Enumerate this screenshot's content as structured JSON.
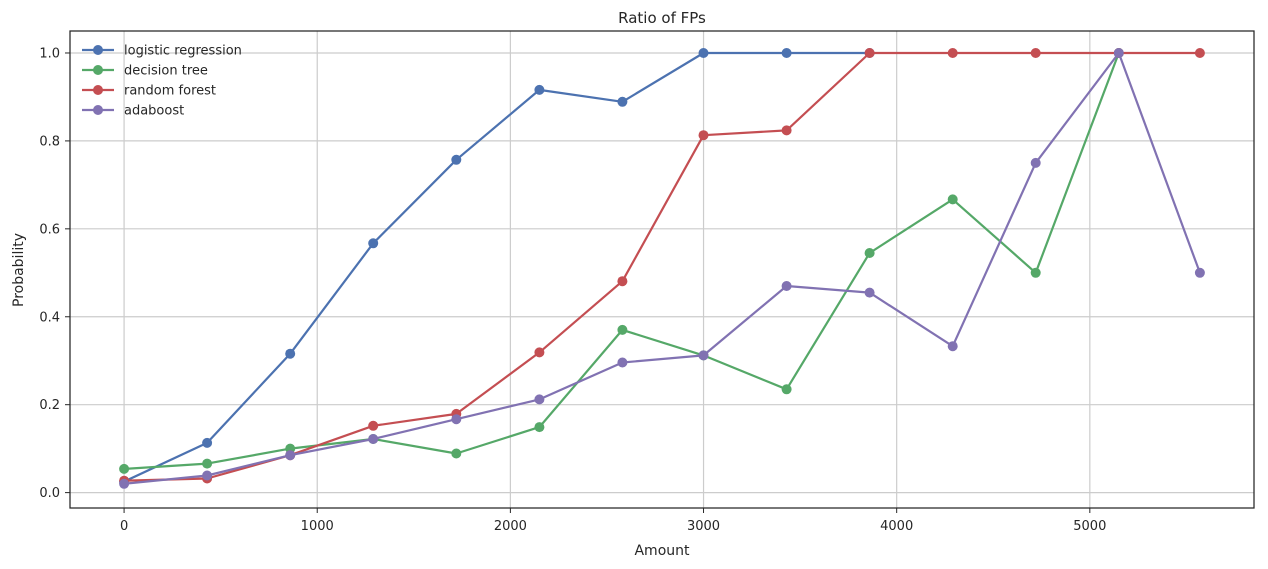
{
  "chart_data": {
    "type": "line",
    "title": "Ratio of FPs",
    "xlabel": "Amount",
    "ylabel": "Probability",
    "xlim": [
      -280,
      5850
    ],
    "ylim": [
      -0.035,
      1.05
    ],
    "xticks": [
      0,
      1000,
      2000,
      3000,
      4000,
      5000
    ],
    "yticks": [
      0.0,
      0.2,
      0.4,
      0.6,
      0.8,
      1.0
    ],
    "xtick_labels": [
      "0",
      "1000",
      "2000",
      "3000",
      "4000",
      "5000"
    ],
    "ytick_labels": [
      "0.0",
      "0.2",
      "0.4",
      "0.6",
      "0.8",
      "1.0"
    ],
    "grid": true,
    "legend_position": "top-left",
    "x": [
      0,
      430,
      860,
      1290,
      1720,
      2150,
      2580,
      3000,
      3430,
      3860,
      4290,
      4720,
      5150,
      5570
    ],
    "series": [
      {
        "name": "logistic regression",
        "color": "#4C72B0",
        "values": [
          0.025,
          0.113,
          0.316,
          0.567,
          0.757,
          0.916,
          0.889,
          1.0,
          1.0,
          1.0,
          null,
          null,
          null,
          null
        ]
      },
      {
        "name": "decision tree",
        "color": "#55A868",
        "values": [
          0.054,
          0.066,
          0.1,
          0.122,
          0.089,
          0.149,
          0.37,
          0.312,
          0.235,
          0.545,
          0.667,
          0.5,
          1.0,
          null
        ]
      },
      {
        "name": "random forest",
        "color": "#C44E52",
        "values": [
          0.027,
          0.032,
          0.085,
          0.152,
          0.179,
          0.319,
          0.481,
          0.813,
          0.824,
          1.0,
          1.0,
          1.0,
          1.0,
          1.0
        ]
      },
      {
        "name": "adaboost",
        "color": "#8172B2",
        "values": [
          0.02,
          0.039,
          0.085,
          0.122,
          0.167,
          0.212,
          0.296,
          0.312,
          0.47,
          0.455,
          0.333,
          0.75,
          1.0,
          0.5
        ]
      }
    ]
  }
}
